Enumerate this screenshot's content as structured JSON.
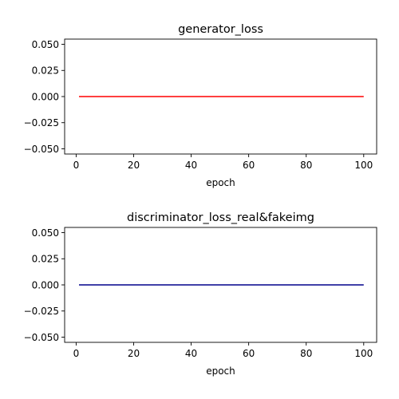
{
  "chart_data": [
    {
      "type": "line",
      "title": "generator_loss",
      "xlabel": "epoch",
      "ylabel": "",
      "xlim": [
        -4,
        104.5
      ],
      "ylim": [
        -0.055,
        0.055
      ],
      "xticks": [
        0,
        20,
        40,
        60,
        80,
        100
      ],
      "xtick_labels": [
        "0",
        "20",
        "40",
        "60",
        "80",
        "100"
      ],
      "yticks": [
        0.05,
        0.025,
        0.0,
        -0.025,
        -0.05
      ],
      "ytick_labels": [
        "0.050",
        "0.025",
        "0.000",
        "−0.025",
        "−0.050"
      ],
      "grid": false,
      "series": [
        {
          "color": "#ff0000",
          "x": [
            1,
            100
          ],
          "y": [
            0.0,
            0.0
          ]
        }
      ]
    },
    {
      "type": "line",
      "title": "discriminator_loss_real&fakeimg",
      "xlabel": "epoch",
      "ylabel": "",
      "xlim": [
        -4,
        104.5
      ],
      "ylim": [
        -0.055,
        0.055
      ],
      "xticks": [
        0,
        20,
        40,
        60,
        80,
        100
      ],
      "xtick_labels": [
        "0",
        "20",
        "40",
        "60",
        "80",
        "100"
      ],
      "yticks": [
        0.05,
        0.025,
        0.0,
        -0.025,
        -0.05
      ],
      "ytick_labels": [
        "0.050",
        "0.025",
        "0.000",
        "−0.025",
        "−0.050"
      ],
      "grid": false,
      "series": [
        {
          "color": "#00008b",
          "x": [
            1,
            100
          ],
          "y": [
            0.0,
            0.0
          ]
        }
      ]
    }
  ]
}
